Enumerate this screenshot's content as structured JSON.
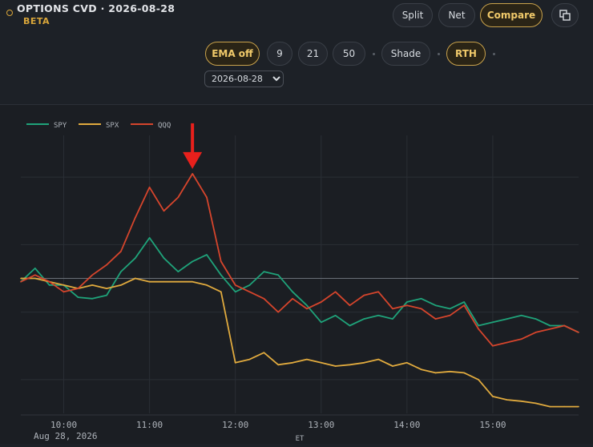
{
  "header": {
    "title": "OPTIONS CVD · 2026-08-28",
    "badge": "BETA",
    "view_buttons": [
      {
        "label": "Split",
        "active": false
      },
      {
        "label": "Net",
        "active": false
      },
      {
        "label": "Compare",
        "active": true
      }
    ],
    "copy_icon": "copy-icon"
  },
  "toolbar": {
    "ema_label": "EMA off",
    "ema_periods": [
      "9",
      "21",
      "50"
    ],
    "shade_label": "Shade",
    "rth_label": "RTH",
    "date_value": "2026-08-28"
  },
  "colors": {
    "accent": "#d9a63a",
    "spy": "#1fa37a",
    "spx": "#e0aa3e",
    "qqq": "#d6452c",
    "annotation_arrow": "#e8201c"
  },
  "chart_data": {
    "type": "line",
    "title": "",
    "xlabel": "ET",
    "ylabel": "",
    "x_date_label": "Aug 28, 2026",
    "x_ticks": [
      "10:00",
      "11:00",
      "12:00",
      "13:00",
      "14:00",
      "15:00"
    ],
    "xlim": [
      "09:30",
      "16:00"
    ],
    "ylim": [
      -200,
      200
    ],
    "zero_line": 0,
    "grid": true,
    "legend": "top-left",
    "annotation": {
      "type": "arrow",
      "points_to": "QQQ peak",
      "x": "11:30"
    },
    "series": [
      {
        "name": "SPY",
        "x": [
          "09:30",
          "09:40",
          "09:50",
          "10:00",
          "10:10",
          "10:20",
          "10:30",
          "10:40",
          "10:50",
          "11:00",
          "11:10",
          "11:20",
          "11:30",
          "11:40",
          "11:50",
          "12:00",
          "12:10",
          "12:20",
          "12:30",
          "12:40",
          "12:50",
          "13:00",
          "13:10",
          "13:20",
          "13:30",
          "13:40",
          "13:50",
          "14:00",
          "14:10",
          "14:20",
          "14:30",
          "14:40",
          "14:50",
          "15:00",
          "15:10",
          "15:20",
          "15:30",
          "15:40",
          "15:50",
          "16:00"
        ],
        "values": [
          -5,
          15,
          -10,
          -10,
          -28,
          -30,
          -25,
          10,
          30,
          60,
          30,
          10,
          25,
          35,
          5,
          -20,
          -10,
          10,
          5,
          -20,
          -40,
          -65,
          -55,
          -70,
          -60,
          -55,
          -60,
          -35,
          -30,
          -40,
          -45,
          -35,
          -70,
          -65,
          -60,
          -55,
          -60,
          -70,
          -70,
          -80
        ]
      },
      {
        "name": "SPX",
        "x": [
          "09:30",
          "09:40",
          "09:50",
          "10:00",
          "10:10",
          "10:20",
          "10:30",
          "10:40",
          "10:50",
          "11:00",
          "11:10",
          "11:20",
          "11:30",
          "11:40",
          "11:50",
          "12:00",
          "12:10",
          "12:20",
          "12:30",
          "12:40",
          "12:50",
          "13:00",
          "13:10",
          "13:20",
          "13:30",
          "13:40",
          "13:50",
          "14:00",
          "14:10",
          "14:20",
          "14:30",
          "14:40",
          "14:50",
          "15:00",
          "15:10",
          "15:20",
          "15:30",
          "15:40",
          "15:50",
          "16:00"
        ],
        "values": [
          0,
          0,
          -5,
          -10,
          -15,
          -10,
          -15,
          -10,
          0,
          -5,
          -5,
          -5,
          -5,
          -10,
          -20,
          -125,
          -120,
          -110,
          -128,
          -125,
          -120,
          -125,
          -130,
          -128,
          -125,
          -120,
          -130,
          -125,
          -135,
          -140,
          -138,
          -140,
          -150,
          -175,
          -180,
          -182,
          -185,
          -190,
          -190,
          -190
        ]
      },
      {
        "name": "QQQ",
        "x": [
          "09:30",
          "09:40",
          "09:50",
          "10:00",
          "10:10",
          "10:20",
          "10:30",
          "10:40",
          "10:50",
          "11:00",
          "11:10",
          "11:20",
          "11:30",
          "11:40",
          "11:50",
          "12:00",
          "12:10",
          "12:20",
          "12:30",
          "12:40",
          "12:50",
          "13:00",
          "13:10",
          "13:20",
          "13:30",
          "13:40",
          "13:50",
          "14:00",
          "14:10",
          "14:20",
          "14:30",
          "14:40",
          "14:50",
          "15:00",
          "15:10",
          "15:20",
          "15:30",
          "15:40",
          "15:50",
          "16:00"
        ],
        "values": [
          -5,
          5,
          -5,
          -20,
          -15,
          5,
          20,
          40,
          90,
          135,
          100,
          120,
          155,
          120,
          25,
          -10,
          -20,
          -30,
          -50,
          -30,
          -45,
          -35,
          -20,
          -40,
          -25,
          -20,
          -45,
          -40,
          -45,
          -60,
          -55,
          -40,
          -75,
          -100,
          -95,
          -90,
          -80,
          -75,
          -70,
          -80
        ]
      }
    ]
  }
}
